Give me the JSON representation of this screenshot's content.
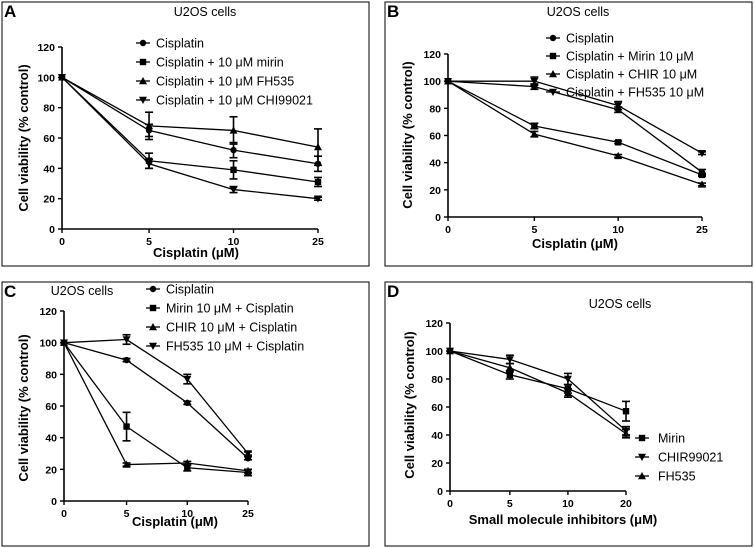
{
  "chart_data": [
    {
      "panel": "A",
      "type": "line",
      "title": "U2OS  cells",
      "xlabel": "Cisplatin (μM)",
      "ylabel": "Cell viability (% control)",
      "categories": [
        "0",
        "5",
        "10",
        "25"
      ],
      "ylim": [
        0,
        120
      ],
      "yticks": [
        0,
        20,
        40,
        60,
        80,
        100,
        120
      ],
      "legend_position": "top-right",
      "series": [
        {
          "name": "Cisplatin",
          "marker": "circle",
          "values": [
            100,
            65,
            52,
            43
          ],
          "errors": [
            0,
            4,
            5,
            5
          ]
        },
        {
          "name": "Cisplatin + 10 μM mirin",
          "marker": "square",
          "values": [
            100,
            45,
            39,
            31
          ],
          "errors": [
            0,
            5,
            6,
            3
          ]
        },
        {
          "name": "Cisplatin + 10 μM FH535",
          "marker": "triangle-up",
          "values": [
            100,
            68,
            65,
            54
          ],
          "errors": [
            0,
            9,
            9,
            12
          ]
        },
        {
          "name": "Cisplatin + 10 μM CHI99021",
          "marker": "triangle-down",
          "values": [
            100,
            43,
            26,
            20
          ],
          "errors": [
            0,
            3,
            2,
            1
          ]
        }
      ]
    },
    {
      "panel": "B",
      "type": "line",
      "title": "U2OS cells",
      "xlabel": "Cisplatin (μM)",
      "ylabel": "Cell viability (% control)",
      "categories": [
        "0",
        "5",
        "10",
        "25"
      ],
      "ylim": [
        0,
        120
      ],
      "yticks": [
        0,
        20,
        40,
        60,
        80,
        100,
        120
      ],
      "legend_position": "top-right",
      "series": [
        {
          "name": "Cisplatin",
          "marker": "circle",
          "values": [
            100,
            96,
            79,
            33
          ],
          "errors": [
            0,
            2,
            2,
            2
          ]
        },
        {
          "name": "Cisplatin + Mirin 10 μM",
          "marker": "square",
          "values": [
            100,
            67,
            55,
            31
          ],
          "errors": [
            0,
            2,
            1,
            1
          ]
        },
        {
          "name": "Cisplatin + CHIR 10 μM",
          "marker": "triangle-up",
          "values": [
            100,
            61,
            45,
            24
          ],
          "errors": [
            0,
            2,
            1,
            1
          ]
        },
        {
          "name": "Cisplatin + FH535 10 μM",
          "marker": "triangle-down",
          "values": [
            100,
            100,
            82,
            47
          ],
          "errors": [
            0,
            3,
            3,
            1
          ]
        }
      ]
    },
    {
      "panel": "C",
      "type": "line",
      "title": "U2OS cells",
      "xlabel": "Cisplatin (μM)",
      "ylabel": "Cell viability (% control)",
      "categories": [
        "0",
        "5",
        "10",
        "25"
      ],
      "ylim": [
        0,
        120
      ],
      "yticks": [
        0,
        20,
        40,
        60,
        80,
        100,
        120
      ],
      "legend_position": "top-right",
      "series": [
        {
          "name": "Cisplatin",
          "marker": "circle",
          "values": [
            100,
            89,
            62,
            27
          ],
          "errors": [
            0,
            1,
            1,
            1
          ]
        },
        {
          "name": "Mirin 10 μM + Cisplatin",
          "marker": "square",
          "values": [
            100,
            47,
            21,
            18
          ],
          "errors": [
            0,
            9,
            2,
            2
          ]
        },
        {
          "name": "CHIR 10 μM + Cisplatin",
          "marker": "triangle-up",
          "values": [
            100,
            23,
            24,
            19
          ],
          "errors": [
            0,
            1,
            1,
            1
          ]
        },
        {
          "name": "FH535 10 μM + Cisplatin",
          "marker": "triangle-down",
          "values": [
            100,
            102,
            77,
            30
          ],
          "errors": [
            0,
            3,
            3,
            1
          ]
        }
      ]
    },
    {
      "panel": "D",
      "type": "line",
      "title": "U2OS cells",
      "xlabel": "Small molecule inhibitors (μM)",
      "ylabel": "Cell viability (% control)",
      "categories": [
        "0",
        "5",
        "10",
        "20"
      ],
      "ylim": [
        0,
        120
      ],
      "yticks": [
        0,
        20,
        40,
        60,
        80,
        100,
        120
      ],
      "legend_position": "bottom-right",
      "series": [
        {
          "name": "Mirin",
          "marker": "square",
          "values": [
            100,
            83,
            73,
            57
          ],
          "errors": [
            0,
            3,
            3,
            7
          ]
        },
        {
          "name": "CHIR99021",
          "marker": "triangle-down",
          "values": [
            100,
            94,
            80,
            43
          ],
          "errors": [
            0,
            3,
            4,
            3
          ]
        },
        {
          "name": "FH535",
          "marker": "triangle-up",
          "values": [
            100,
            88,
            70,
            41
          ],
          "errors": [
            0,
            3,
            3,
            3
          ]
        }
      ]
    }
  ]
}
